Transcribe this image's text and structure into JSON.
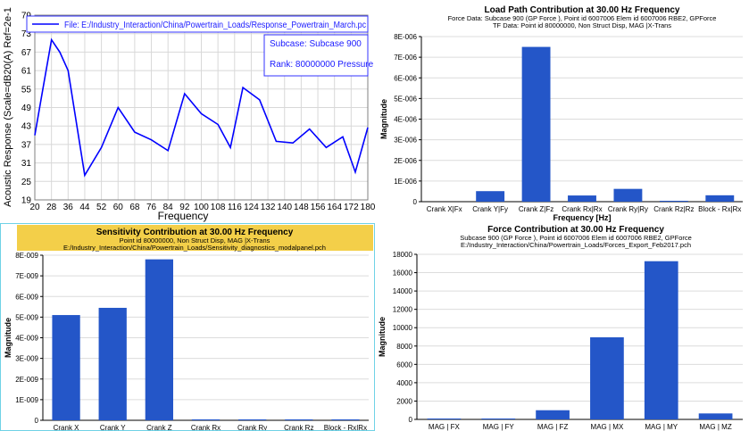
{
  "chart_data": [
    {
      "type": "line",
      "panel": "top-left",
      "title": "",
      "xlabel": "Frequency",
      "ylabel": "Acoustic Response (Scale=dB20(A) Ref=2e-1",
      "x": [
        20,
        28,
        36,
        44,
        52,
        60,
        68,
        76,
        84,
        92,
        100,
        108,
        116,
        124,
        132,
        140,
        148,
        156,
        164,
        172,
        180
      ],
      "x_ticks": [
        "20",
        "28",
        "36",
        "44",
        "52",
        "60",
        "68",
        "76",
        "84",
        "92",
        "100",
        "108",
        "116",
        "124",
        "132",
        "140",
        "148",
        "156",
        "164",
        "172",
        "180"
      ],
      "y_ticks": [
        "19",
        "25",
        "31",
        "37",
        "43",
        "49",
        "55",
        "61",
        "67",
        "73",
        "79"
      ],
      "xlim": [
        20,
        180
      ],
      "ylim": [
        19,
        79
      ],
      "grid": true,
      "series": [
        {
          "name": "File: E:/Industry_Interaction/China/Powertrain_Loads/Response_Powertrain_March.pc",
          "color": "#0000ff",
          "points": [
            [
              20,
              40
            ],
            [
              24,
              55.5
            ],
            [
              28,
              71
            ],
            [
              32,
              67
            ],
            [
              36,
              61
            ],
            [
              44,
              27
            ],
            [
              52,
              36
            ],
            [
              60,
              49
            ],
            [
              68,
              41
            ],
            [
              76,
              38.5
            ],
            [
              84,
              35
            ],
            [
              92,
              53.5
            ],
            [
              100,
              47
            ],
            [
              108,
              43.5
            ],
            [
              114,
              36
            ],
            [
              120,
              55.5
            ],
            [
              128,
              51.5
            ],
            [
              136,
              38
            ],
            [
              144,
              37.5
            ],
            [
              152,
              42
            ],
            [
              160,
              36
            ],
            [
              168,
              39.5
            ],
            [
              174,
              28
            ],
            [
              180,
              42.5
            ]
          ]
        }
      ],
      "legend_position": "top",
      "annotation": {
        "subcase": "Subcase: Subcase 900",
        "rank": "Rank: 80000000  Pressure"
      }
    },
    {
      "type": "bar",
      "panel": "top-right",
      "title": "Load Path Contribution at 30.00 Hz Frequency",
      "subtitle_1": "Force Data: Subcase 900 (GP Force ), Point id 6007006 Elem id 6007006 RBE2, GPForce",
      "subtitle_2": "TF Data: Point id 80000000, Non Struct Disp, MAG |X-Trans",
      "xlabel": "Frequency [Hz]",
      "ylabel": "Magnitude",
      "categories": [
        "Crank X|Fx",
        "Crank Y|Fy",
        "Crank Z|Fz",
        "Crank Rx|Rx",
        "Crank Ry|Ry",
        "Crank Rz|Rz",
        "Block - Rx|Rx"
      ],
      "values": [
        0,
        5.1e-07,
        7.5e-06,
        3e-07,
        6.2e-07,
        3e-08,
        3.1e-07
      ],
      "y_ticks": [
        "0",
        "1E-006",
        "2E-006",
        "3E-006",
        "4E-006",
        "5E-006",
        "6E-006",
        "7E-006",
        "8E-006"
      ],
      "ylim": [
        0,
        8e-06
      ],
      "bar_color": "#2456c8",
      "grid": true
    },
    {
      "type": "bar",
      "panel": "bottom-left",
      "title": "Sensitivity Contribution at 30.00 Hz Frequency",
      "subtitle_1": "Point id 80000000, Non Struct Disp, MAG |X-Trans",
      "subtitle_2": "E:/Industry_Interaction/China/Powertrain_Loads/Sensitivity_diagnostics_modalpanel.pch",
      "xlabel": "",
      "ylabel": "Magnitude",
      "categories": [
        "Crank X",
        "Crank Y",
        "Crank Z",
        "Crank Rx",
        "Crank Ry",
        "Crank Rz",
        "Block - Rx|Rx"
      ],
      "values": [
        5.1e-09,
        5.45e-09,
        7.8e-09,
        3e-11,
        2e-11,
        1e-11,
        4e-11
      ],
      "y_ticks": [
        "0",
        "1E-009",
        "2E-009",
        "3E-009",
        "4E-009",
        "5E-009",
        "6E-009",
        "7E-009",
        "8E-009"
      ],
      "ylim": [
        0,
        8e-09
      ],
      "bar_color": "#2456c8",
      "grid": true
    },
    {
      "type": "bar",
      "panel": "bottom-right",
      "title": "Force Contribution at 30.00 Hz Frequency",
      "subtitle_1": "Subcase 900 (GP Force ), Point id 6007006 Elem id 6007006 RBE2, GPForce",
      "subtitle_2": "E:/Industry_Interaction/China/Powertrain_Loads/Forces_Export_Feb2017.pch",
      "xlabel": "",
      "ylabel": "Magnitude",
      "categories": [
        "MAG | FX",
        "MAG | FY",
        "MAG | FZ",
        "MAG | MX",
        "MAG | MY",
        "MAG | MZ"
      ],
      "values": [
        20,
        60,
        1000,
        8950,
        17250,
        650
      ],
      "y_ticks": [
        "0",
        "2000",
        "4000",
        "6000",
        "8000",
        "10000",
        "12000",
        "14000",
        "16000",
        "18000"
      ],
      "ylim": [
        0,
        18000
      ],
      "bar_color": "#2456c8",
      "grid": true
    }
  ]
}
